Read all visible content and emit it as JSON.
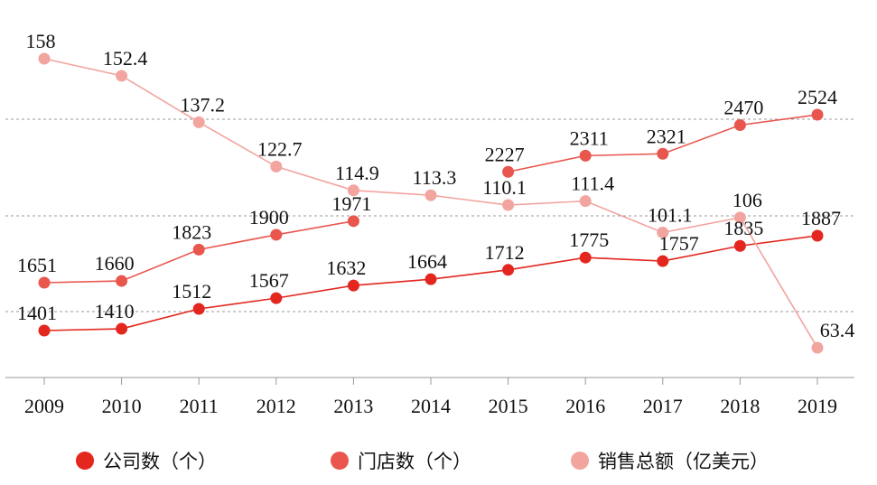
{
  "chart_data": {
    "type": "line",
    "categories": [
      "2009",
      "2010",
      "2011",
      "2012",
      "2013",
      "2014",
      "2015",
      "2016",
      "2017",
      "2018",
      "2019"
    ],
    "series": [
      {
        "name": "公司数（个）",
        "color": "#e3261e",
        "values": [
          1401,
          1410,
          1512,
          1567,
          1632,
          1664,
          1712,
          1775,
          1757,
          1835,
          1887
        ]
      },
      {
        "name": "门店数（个）",
        "color": "#e8564e",
        "values": [
          1651,
          1660,
          1823,
          1900,
          1971,
          null,
          2227,
          2311,
          2321,
          2470,
          2524
        ]
      },
      {
        "name": "销售总额（亿美元）",
        "color": "#f2a49e",
        "values": [
          158,
          152.4,
          137.2,
          122.7,
          114.9,
          113.3,
          110.1,
          111.4,
          101.1,
          106,
          63.4
        ]
      }
    ],
    "grid": "horizontal dashed",
    "legend_position": "bottom"
  }
}
